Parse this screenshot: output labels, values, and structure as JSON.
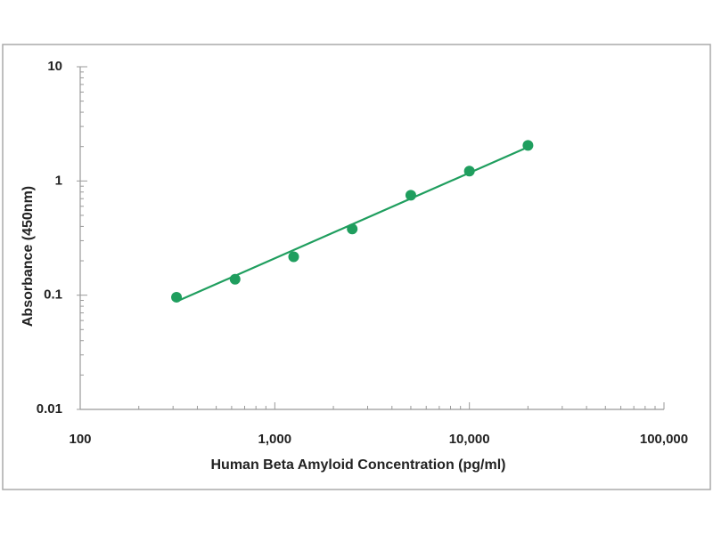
{
  "chart_data": {
    "type": "scatter",
    "xlabel": "Human Beta Amyloid  Concentration (pg/ml)",
    "ylabel": "Absorbance (450nm)",
    "xscale": "log",
    "yscale": "log",
    "xlim": [
      100,
      100000
    ],
    "xticks": [
      100,
      {
        "value": 1000,
        "label": "1,000"
      },
      {
        "value": 10000,
        "label": "10,000"
      },
      {
        "value": 100000,
        "label": "100,000"
      }
    ],
    "ylim": [
      0.01,
      10
    ],
    "yticks": [
      0.01,
      0.1,
      1,
      10
    ],
    "grid": false,
    "series": [
      {
        "color": "#1f9e5e",
        "x": [
          312.5,
          625,
          1250,
          2500,
          5000,
          10000,
          20000
        ],
        "values": [
          0.096,
          0.138,
          0.217,
          0.38,
          0.75,
          1.22,
          2.05
        ]
      }
    ],
    "fit": {
      "color": "#1f9e5e",
      "x": [
        312.5,
        20000
      ],
      "values": [
        0.088,
        1.98
      ]
    }
  }
}
